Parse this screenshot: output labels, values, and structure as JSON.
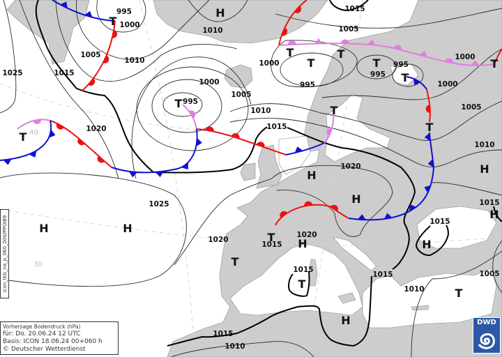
{
  "legend": {
    "line1": "Vorhersage Bodendruck (hPa)",
    "line2": "für:  Do. 20.06.24  12 UTC",
    "line3": "Basis: ICON  18.06.24 00+060 h",
    "line4": "© Deutscher Wetterdienst"
  },
  "product_code": "icon_tkb_na_p_060_000/PPOI89",
  "logo": "DWD",
  "graticule_labels": [
    "40",
    "30"
  ],
  "units": "hPa",
  "isobar_labels": [
    "995",
    "1000",
    "1005",
    "1010",
    "1025",
    "1015",
    "1010",
    "1000",
    "995",
    "1005",
    "1020",
    "1010",
    "1015",
    "1015",
    "1005",
    "1000",
    "995",
    "995",
    "995",
    "1000",
    "1000",
    "1005",
    "1010",
    "1020",
    "1025",
    "1020",
    "1015",
    "1020",
    "1015",
    "1015",
    "1015",
    "1005",
    "1015",
    "1010",
    "1015",
    "1010"
  ],
  "pressure_centers": [
    "H",
    "T",
    "T",
    "T",
    "T",
    "T",
    "T",
    "T",
    "T",
    "T",
    "T",
    "T",
    "H",
    "H",
    "H",
    "H",
    "H",
    "H",
    "H",
    "H",
    "T",
    "T",
    "T",
    "H",
    "T"
  ],
  "colors": {
    "land": "#cdcdcd",
    "sea": "#ffffff",
    "cold_front": "#1010d0",
    "warm_front": "#ee1111",
    "occlusion": "#e07ee0",
    "logo_bg": "#2c58a6"
  }
}
